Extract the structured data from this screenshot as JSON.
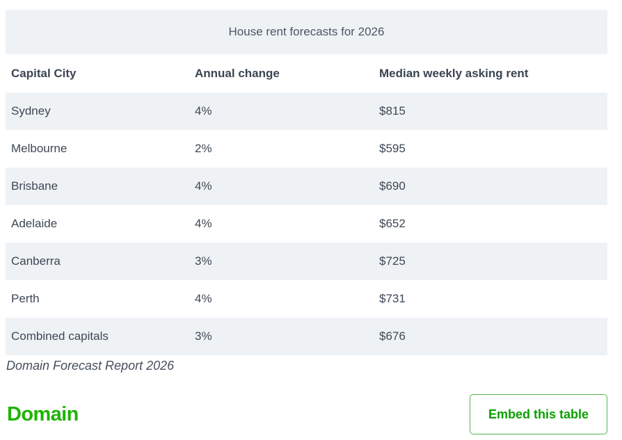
{
  "chart_data": {
    "type": "table",
    "title": "House rent forecasts for 2026",
    "columns": [
      "Capital City",
      "Annual change",
      "Median weekly asking rent"
    ],
    "rows": [
      [
        "Sydney",
        "4%",
        "$815"
      ],
      [
        "Melbourne",
        "2%",
        "$595"
      ],
      [
        "Brisbane",
        "4%",
        "$690"
      ],
      [
        "Adelaide",
        "4%",
        "$652"
      ],
      [
        "Canberra",
        "3%",
        "$725"
      ],
      [
        "Perth",
        "4%",
        "$731"
      ],
      [
        "Combined capitals",
        "3%",
        "$676"
      ]
    ],
    "categories": [
      "Sydney",
      "Melbourne",
      "Brisbane",
      "Adelaide",
      "Canberra",
      "Perth",
      "Combined capitals"
    ],
    "series": [
      {
        "name": "Annual change (%)",
        "values": [
          4,
          2,
          4,
          4,
          3,
          4,
          3
        ]
      },
      {
        "name": "Median weekly asking rent ($)",
        "values": [
          815,
          595,
          690,
          652,
          725,
          731,
          676
        ]
      }
    ],
    "source": "Domain Forecast Report 2026",
    "layout": {
      "striped_rows": true,
      "title_position": "top-center"
    }
  },
  "footer": {
    "brand": "Domain",
    "embed_button_label": "Embed this table"
  },
  "colors": {
    "row_alt_bg": "#eff2f5",
    "text": "#3d4754",
    "brand_green": "#1db400",
    "button_green": "#0ba000",
    "button_border_green": "#53b64a"
  }
}
